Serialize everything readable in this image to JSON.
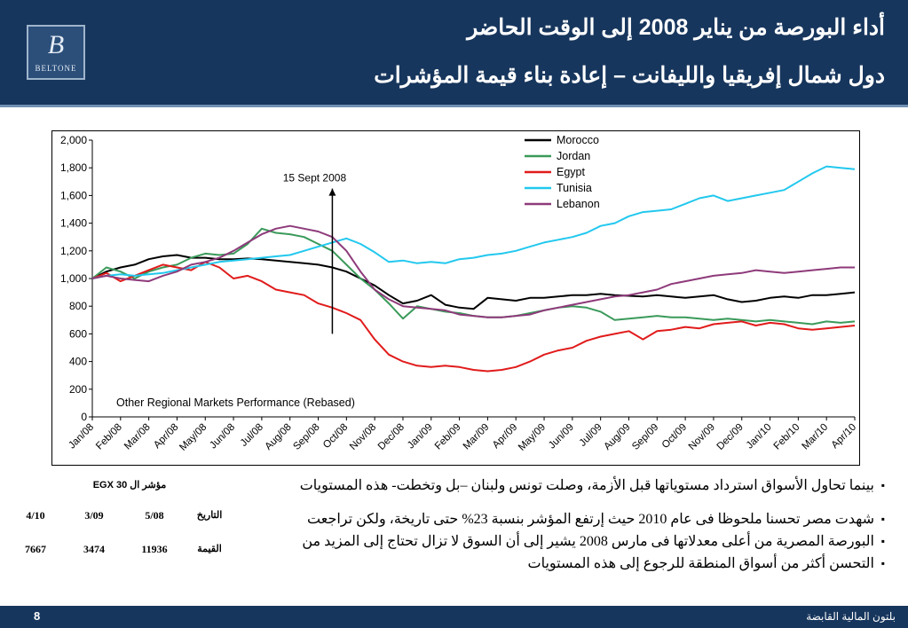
{
  "header": {
    "title_line1": "أداء البورصة من يناير 2008 إلى الوقت الحاضر",
    "title_line2": "دول شمال إفريقيا والليفانت – إعادة بناء قيمة المؤشرات",
    "logo_letter": "B",
    "logo_word": "BELTONE"
  },
  "bullets": [
    "بينما تحاول الأسواق استرداد مستوياتها قبل الأزمة، وصلت تونس ولبنان –بل وتخطت- هذه المستويات",
    "شهدت مصر تحسنا ملحوظا فى عام 2010 حيث إرتفع المؤشر بنسبة 23% حتى تاريخة، ولكن تراجعت",
    "البورصة المصرية من أعلى معدلاتها فى مارس 2008 يشير إلى أن السوق لا تزال تحتاج إلى المزيد من",
    "التحسن أكثر من أسواق المنطقة للرجوع إلى هذه المستويات"
  ],
  "egx_table": {
    "title": "مؤشر ال EGX 30",
    "row_date_label": "التاريخ",
    "row_value_label": "القيمة",
    "dates": [
      "5/08",
      "3/09",
      "4/10"
    ],
    "values": [
      "11936",
      "3474",
      "7667"
    ]
  },
  "footer": {
    "page_number": "8",
    "company": "بلتون المالية القابضة"
  },
  "chart_data": {
    "type": "line",
    "title": "Other Regional Markets Performance (Rebased)",
    "xlabel": "",
    "ylabel": "",
    "ylim": [
      0,
      2000
    ],
    "yticks": [
      0,
      200,
      400,
      600,
      800,
      1000,
      1200,
      1400,
      1600,
      1800,
      2000
    ],
    "ytick_labels": [
      "0",
      "200",
      "400",
      "600",
      "800",
      "1,000",
      "1,200",
      "1,400",
      "1,600",
      "1,800",
      "2,000"
    ],
    "categories": [
      "Jan/08",
      "Feb/08",
      "Mar/08",
      "Apr/08",
      "May/08",
      "Jun/08",
      "Jul/08",
      "Aug/08",
      "Sep/08",
      "Oct/08",
      "Nov/08",
      "Dec/08",
      "Jan/09",
      "Feb/09",
      "Mar/09",
      "Apr/09",
      "May/09",
      "Jun/09",
      "Jul/09",
      "Aug/09",
      "Sep/09",
      "Oct/09",
      "Nov/09",
      "Dec/09",
      "Jan/10",
      "Feb/10",
      "Mar/10",
      "Apr/10"
    ],
    "grid": false,
    "legend_position": "top-right",
    "annotation": {
      "label": "15 Sept 2008",
      "x": 8.5,
      "y_from": 600,
      "y_to": 1650
    },
    "series": [
      {
        "name": "Morocco",
        "color": "#000000",
        "x": [
          0,
          0.5,
          1,
          1.5,
          2,
          2.5,
          3,
          3.5,
          4,
          4.5,
          5,
          5.5,
          6,
          6.5,
          7,
          7.5,
          8,
          8.5,
          9,
          9.5,
          10,
          10.5,
          11,
          11.5,
          12,
          12.5,
          13,
          13.5,
          14,
          14.5,
          15,
          15.5,
          16,
          16.5,
          17,
          17.5,
          18,
          18.5,
          19,
          19.5,
          20,
          20.5,
          21,
          21.5,
          22,
          22.5,
          23,
          23.5,
          24,
          24.5,
          25,
          25.5,
          26,
          26.5,
          27
        ],
        "y": [
          1000,
          1050,
          1080,
          1100,
          1140,
          1160,
          1170,
          1150,
          1150,
          1140,
          1140,
          1145,
          1140,
          1130,
          1120,
          1110,
          1100,
          1080,
          1050,
          1000,
          950,
          880,
          820,
          840,
          880,
          810,
          790,
          780,
          860,
          850,
          840,
          860,
          860,
          870,
          880,
          880,
          890,
          880,
          875,
          870,
          880,
          870,
          860,
          870,
          880,
          850,
          830,
          840,
          860,
          870,
          860,
          880,
          880,
          890,
          900
        ]
      },
      {
        "name": "Jordan",
        "color": "#3a9a5a",
        "x": [
          0,
          0.5,
          1,
          1.5,
          2,
          2.5,
          3,
          3.5,
          4,
          4.5,
          5,
          5.5,
          6,
          6.5,
          7,
          7.5,
          8,
          8.5,
          9,
          9.5,
          10,
          10.5,
          11,
          11.5,
          12,
          12.5,
          13,
          13.5,
          14,
          14.5,
          15,
          15.5,
          16,
          16.5,
          17,
          17.5,
          18,
          18.5,
          19,
          19.5,
          20,
          20.5,
          21,
          21.5,
          22,
          22.5,
          23,
          23.5,
          24,
          24.5,
          25,
          25.5,
          26,
          26.5,
          27
        ],
        "y": [
          1000,
          1080,
          1050,
          1000,
          1050,
          1080,
          1100,
          1150,
          1180,
          1170,
          1180,
          1250,
          1360,
          1330,
          1320,
          1300,
          1250,
          1200,
          1100,
          1000,
          920,
          820,
          710,
          800,
          780,
          760,
          750,
          730,
          720,
          720,
          730,
          750,
          770,
          790,
          800,
          790,
          760,
          700,
          710,
          720,
          730,
          720,
          720,
          710,
          700,
          710,
          700,
          690,
          700,
          690,
          680,
          670,
          690,
          680,
          690
        ]
      },
      {
        "name": "Egypt",
        "color": "#e11b1b",
        "x": [
          0,
          0.5,
          1,
          1.5,
          2,
          2.5,
          3,
          3.5,
          4,
          4.5,
          5,
          5.5,
          6,
          6.5,
          7,
          7.5,
          8,
          8.5,
          9,
          9.5,
          10,
          10.5,
          11,
          11.5,
          12,
          12.5,
          13,
          13.5,
          14,
          14.5,
          15,
          15.5,
          16,
          16.5,
          17,
          17.5,
          18,
          18.5,
          19,
          19.5,
          20,
          20.5,
          21,
          21.5,
          22,
          22.5,
          23,
          23.5,
          24,
          24.5,
          25,
          25.5,
          26,
          26.5,
          27
        ],
        "y": [
          1000,
          1040,
          980,
          1020,
          1060,
          1100,
          1080,
          1060,
          1120,
          1080,
          1000,
          1020,
          980,
          920,
          900,
          880,
          820,
          790,
          750,
          700,
          560,
          450,
          400,
          370,
          360,
          370,
          360,
          340,
          330,
          340,
          360,
          400,
          450,
          480,
          500,
          550,
          580,
          600,
          620,
          560,
          620,
          630,
          650,
          640,
          670,
          680,
          690,
          660,
          680,
          670,
          640,
          630,
          640,
          650,
          660
        ]
      },
      {
        "name": "Tunisia",
        "color": "#22c8ee",
        "x": [
          0,
          0.5,
          1,
          1.5,
          2,
          2.5,
          3,
          3.5,
          4,
          4.5,
          5,
          5.5,
          6,
          6.5,
          7,
          7.5,
          8,
          8.5,
          9,
          9.5,
          10,
          10.5,
          11,
          11.5,
          12,
          12.5,
          13,
          13.5,
          14,
          14.5,
          15,
          15.5,
          16,
          16.5,
          17,
          17.5,
          18,
          18.5,
          19,
          19.5,
          20,
          20.5,
          21,
          21.5,
          22,
          22.5,
          23,
          23.5,
          24,
          24.5,
          25,
          25.5,
          26,
          26.5,
          27
        ],
        "y": [
          1000,
          1020,
          1030,
          1020,
          1030,
          1040,
          1060,
          1080,
          1100,
          1120,
          1130,
          1140,
          1150,
          1160,
          1170,
          1200,
          1230,
          1260,
          1290,
          1250,
          1190,
          1120,
          1130,
          1110,
          1120,
          1110,
          1140,
          1150,
          1170,
          1180,
          1200,
          1230,
          1260,
          1280,
          1300,
          1330,
          1380,
          1400,
          1450,
          1480,
          1490,
          1500,
          1540,
          1580,
          1600,
          1560,
          1580,
          1600,
          1620,
          1640,
          1700,
          1760,
          1810,
          1800,
          1790
        ]
      },
      {
        "name": "Lebanon",
        "color": "#8e3a7a",
        "x": [
          0,
          0.5,
          1,
          1.5,
          2,
          2.5,
          3,
          3.5,
          4,
          4.5,
          5,
          5.5,
          6,
          6.5,
          7,
          7.5,
          8,
          8.5,
          9,
          9.5,
          10,
          10.5,
          11,
          11.5,
          12,
          12.5,
          13,
          13.5,
          14,
          14.5,
          15,
          15.5,
          16,
          16.5,
          17,
          17.5,
          18,
          18.5,
          19,
          19.5,
          20,
          20.5,
          21,
          21.5,
          22,
          22.5,
          23,
          23.5,
          24,
          24.5,
          25,
          25.5,
          26,
          26.5,
          27
        ],
        "y": [
          1000,
          1020,
          1000,
          990,
          980,
          1020,
          1050,
          1100,
          1120,
          1150,
          1200,
          1260,
          1320,
          1360,
          1380,
          1360,
          1340,
          1300,
          1200,
          1050,
          920,
          850,
          800,
          790,
          780,
          770,
          740,
          730,
          720,
          720,
          730,
          740,
          770,
          790,
          810,
          830,
          850,
          870,
          880,
          900,
          920,
          960,
          980,
          1000,
          1020,
          1030,
          1040,
          1060,
          1050,
          1040,
          1050,
          1060,
          1070,
          1080,
          1080
        ]
      }
    ]
  }
}
